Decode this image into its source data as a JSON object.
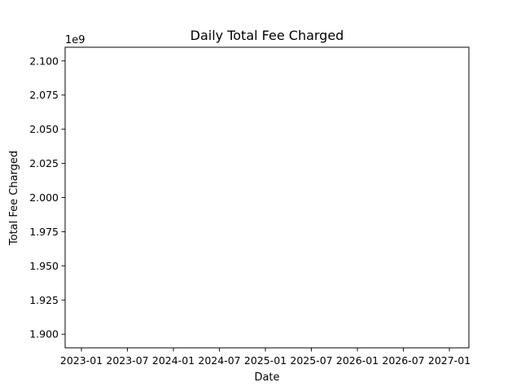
{
  "chart_data": {
    "type": "line",
    "title": "Daily Total Fee Charged",
    "xlabel": "Date",
    "ylabel": "Total Fee Charged",
    "y_offset_label": "1e9",
    "x_ticks": [
      "2023-01",
      "2023-07",
      "2024-01",
      "2024-07",
      "2025-01",
      "2025-07",
      "2026-01",
      "2026-07",
      "2027-01"
    ],
    "y_ticks": [
      "1.900",
      "1.925",
      "1.950",
      "1.975",
      "2.000",
      "2.025",
      "2.050",
      "2.075",
      "2.100"
    ],
    "y_tick_values": [
      1.9,
      1.925,
      1.95,
      1.975,
      2.0,
      2.025,
      2.05,
      2.075,
      2.1
    ],
    "ylim": [
      1.89,
      2.11
    ],
    "series": [],
    "grid": false,
    "legend": "none",
    "colors": {
      "axes": "#000000",
      "background": "#ffffff"
    }
  }
}
